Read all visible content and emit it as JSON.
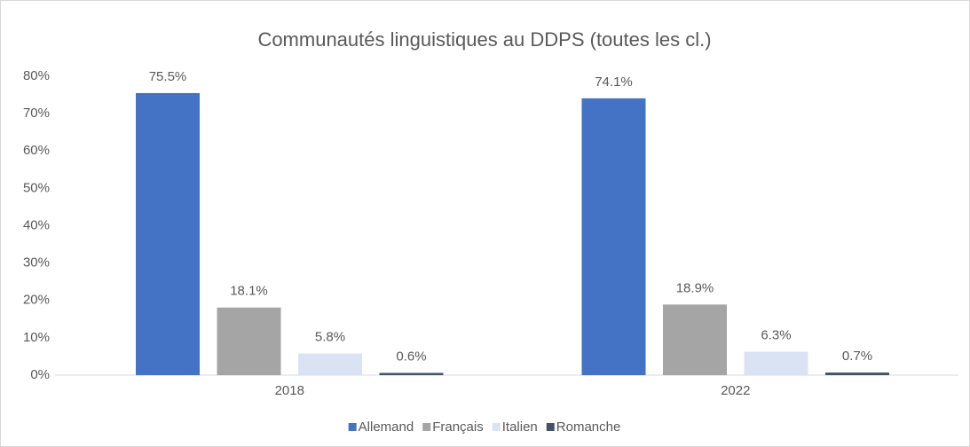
{
  "chart_data": {
    "type": "bar",
    "title": "Communautés linguistiques au DDPS (toutes les cl.)",
    "categories": [
      "2018",
      "2022"
    ],
    "series": [
      {
        "name": "Allemand",
        "color": "#4472c4",
        "values": [
          75.5,
          74.1
        ],
        "value_labels": [
          "75.5%",
          "74.1%"
        ]
      },
      {
        "name": "Français",
        "color": "#a5a5a5",
        "values": [
          18.1,
          18.9
        ],
        "value_labels": [
          "18.1%",
          "18.9%"
        ]
      },
      {
        "name": "Italien",
        "color": "#dae3f3",
        "values": [
          5.8,
          6.3
        ],
        "value_labels": [
          "5.8%",
          "6.3%"
        ]
      },
      {
        "name": "Romanche",
        "color": "#44546a",
        "values": [
          0.6,
          0.7
        ],
        "value_labels": [
          "0.6%",
          "0.7%"
        ]
      }
    ],
    "ylim": [
      0,
      80
    ],
    "yticks": [
      {
        "value": 0,
        "label": "0%"
      },
      {
        "value": 10,
        "label": "10%"
      },
      {
        "value": 20,
        "label": "20%"
      },
      {
        "value": 30,
        "label": "30%"
      },
      {
        "value": 40,
        "label": "40%"
      },
      {
        "value": 50,
        "label": "50%"
      },
      {
        "value": 60,
        "label": "60%"
      },
      {
        "value": 70,
        "label": "70%"
      },
      {
        "value": 80,
        "label": "80%"
      }
    ],
    "grid": false,
    "legend": "bottom"
  }
}
